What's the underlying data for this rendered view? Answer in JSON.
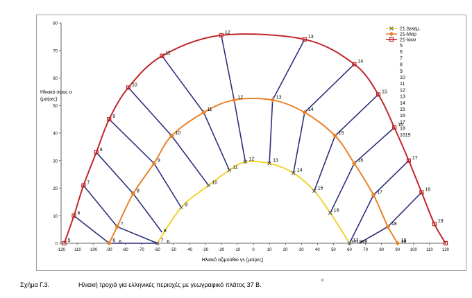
{
  "caption": {
    "label": "Σχήμα Γ.3.",
    "text": "Ηλιακή τροχιά για ελληνικές περιοχές με γεωγραφικό πλάτος 37 Β.",
    "mark": "o"
  },
  "chart_data": {
    "type": "line",
    "xlabel": "Ηλιακό αζιμούθιο γs (μοίρες)",
    "ylabel": "Ηλιακό ύψος α\n(μοίρες)",
    "xlim": [
      -120,
      120
    ],
    "ylim": [
      0,
      80
    ],
    "xticks": [
      -120,
      -110,
      -100,
      -90,
      -80,
      -70,
      -60,
      -50,
      -40,
      -30,
      -20,
      -10,
      0,
      10,
      20,
      30,
      40,
      50,
      60,
      70,
      80,
      90,
      100,
      110,
      120
    ],
    "yticks": [
      0,
      10,
      20,
      30,
      40,
      50,
      60,
      70,
      80
    ],
    "grid": false,
    "legend_position": "top-right",
    "legend_extra": [
      "5",
      "6",
      "7",
      "8",
      "9",
      "10",
      "11",
      "12",
      "13",
      "14",
      "15",
      "16",
      "17",
      "18",
      "1619"
    ],
    "series": [
      {
        "name": "21 Δεκεμ.",
        "color": "#f2d22e",
        "marker": "x",
        "points": [
          {
            "x": -60,
            "y": 0,
            "label": "7"
          },
          {
            "x": -45,
            "y": 13,
            "label": "9"
          },
          {
            "x": -28,
            "y": 21,
            "label": "10"
          },
          {
            "x": -15,
            "y": 26.5,
            "label": "11"
          },
          {
            "x": -5,
            "y": 29.5,
            "label": "12"
          },
          {
            "x": 10,
            "y": 29,
            "label": "13"
          },
          {
            "x": 25,
            "y": 25.5,
            "label": "14"
          },
          {
            "x": 38,
            "y": 19,
            "label": "15"
          },
          {
            "x": 48,
            "y": 11,
            "label": "16"
          },
          {
            "x": 60,
            "y": 0,
            "label": "17"
          }
        ]
      },
      {
        "name": "21-Μαρ",
        "color": "#e8822a",
        "marker": "diamond",
        "points": [
          {
            "x": -90,
            "y": 0,
            "label": "6"
          },
          {
            "x": -85,
            "y": 6,
            "label": "7"
          },
          {
            "x": -75,
            "y": 18,
            "label": "8"
          },
          {
            "x": -62,
            "y": 29,
            "label": "9"
          },
          {
            "x": -51,
            "y": 39,
            "label": "10"
          },
          {
            "x": -31,
            "y": 47.5,
            "label": "11"
          },
          {
            "x": -12,
            "y": 52,
            "label": "12"
          },
          {
            "x": 12,
            "y": 52,
            "label": "13"
          },
          {
            "x": 32,
            "y": 47.5,
            "label": "14"
          },
          {
            "x": 51,
            "y": 39,
            "label": "15"
          },
          {
            "x": 63,
            "y": 29,
            "label": "16"
          },
          {
            "x": 75,
            "y": 17.5,
            "label": "17"
          },
          {
            "x": 84,
            "y": 6,
            "label": "18"
          },
          {
            "x": 90,
            "y": 0,
            "label": "19"
          }
        ]
      },
      {
        "name": "21-Ιουν",
        "color": "#c0262a",
        "marker": "square",
        "points": [
          {
            "x": -118,
            "y": 0,
            "label": "5"
          },
          {
            "x": -112,
            "y": 10,
            "label": "6"
          },
          {
            "x": -106,
            "y": 21,
            "label": "7"
          },
          {
            "x": -98,
            "y": 33,
            "label": "8"
          },
          {
            "x": -90,
            "y": 45,
            "label": "9"
          },
          {
            "x": -78,
            "y": 56.5,
            "label": "10"
          },
          {
            "x": -57,
            "y": 68,
            "label": "11"
          },
          {
            "x": -20,
            "y": 75.5,
            "label": "12"
          },
          {
            "x": 32,
            "y": 74,
            "label": "13"
          },
          {
            "x": 63,
            "y": 65,
            "label": "14"
          },
          {
            "x": 78,
            "y": 54,
            "label": "15"
          },
          {
            "x": 88,
            "y": 42,
            "label": "16"
          },
          {
            "x": 97,
            "y": 30,
            "label": "17"
          },
          {
            "x": 105,
            "y": 18.5,
            "label": "18"
          },
          {
            "x": 113,
            "y": 7,
            "label": "19"
          },
          {
            "x": 120,
            "y": 0,
            "label": ""
          }
        ]
      }
    ],
    "hour_lines": [
      {
        "hour": "6",
        "points": [
          [
            -112,
            10
          ],
          [
            -90,
            0
          ],
          [
            -60,
            0
          ]
        ]
      },
      {
        "hour": "7",
        "points": [
          [
            -106,
            21
          ],
          [
            -85,
            6
          ],
          [
            -60,
            0
          ]
        ]
      },
      {
        "hour": "8",
        "points": [
          [
            -98,
            33
          ],
          [
            -75,
            18
          ],
          [
            -57,
            4
          ]
        ]
      },
      {
        "hour": "9",
        "points": [
          [
            -90,
            45
          ],
          [
            -62,
            29
          ],
          [
            -45,
            13
          ]
        ]
      },
      {
        "hour": "10",
        "points": [
          [
            -78,
            56.5
          ],
          [
            -51,
            39
          ],
          [
            -28,
            21
          ]
        ]
      },
      {
        "hour": "11",
        "points": [
          [
            -57,
            68
          ],
          [
            -31,
            47.5
          ],
          [
            -15,
            26.5
          ]
        ]
      },
      {
        "hour": "12",
        "points": [
          [
            -20,
            75.5
          ],
          [
            -12,
            52
          ],
          [
            -5,
            29.5
          ]
        ]
      },
      {
        "hour": "13",
        "points": [
          [
            32,
            74
          ],
          [
            12,
            52
          ],
          [
            10,
            29
          ]
        ]
      },
      {
        "hour": "14",
        "points": [
          [
            63,
            65
          ],
          [
            32,
            47.5
          ],
          [
            25,
            25.5
          ]
        ]
      },
      {
        "hour": "15",
        "points": [
          [
            78,
            54
          ],
          [
            51,
            39
          ],
          [
            38,
            19
          ]
        ]
      },
      {
        "hour": "16",
        "points": [
          [
            88,
            42
          ],
          [
            63,
            29
          ],
          [
            48,
            11
          ]
        ]
      },
      {
        "hour": "17",
        "points": [
          [
            97,
            30
          ],
          [
            75,
            17.5
          ],
          [
            60,
            0
          ]
        ]
      },
      {
        "hour": "18",
        "points": [
          [
            105,
            18.5
          ],
          [
            84,
            6
          ],
          [
            66,
            0
          ]
        ]
      }
    ],
    "extra_labels": [
      {
        "x": -84,
        "y": 0,
        "text": "6"
      },
      {
        "x": -54,
        "y": 0,
        "text": "6"
      },
      {
        "x": -56,
        "y": 4,
        "text": "8"
      },
      {
        "x": 61,
        "y": 0,
        "text": "171918"
      },
      {
        "x": 92,
        "y": 0,
        "text": "19"
      }
    ]
  }
}
